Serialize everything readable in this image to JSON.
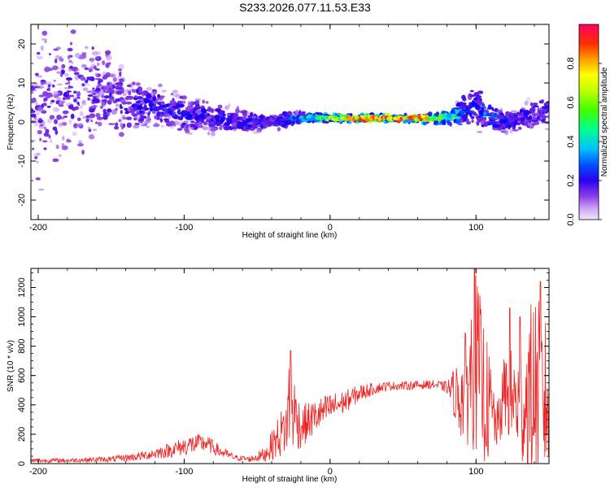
{
  "title": "S233.2026.077.11.53.E33",
  "colors": {
    "snr_line": "#ee2222",
    "colormap": [
      "#f0e8ff",
      "#b784f0",
      "#7b2be0",
      "#3a00e8",
      "#0000ff",
      "#0080ff",
      "#00e0ff",
      "#00ff80",
      "#80ff00",
      "#ffff00",
      "#ffa000",
      "#ff3000",
      "#ff0060"
    ]
  },
  "chart_data": [
    {
      "type": "heatmap",
      "title": "S233.2026.077.11.53.E33",
      "xlabel": "Height of straight line (km)",
      "ylabel": "Frequency (Hz)",
      "xlim": [
        -205,
        150
      ],
      "ylim": [
        -25,
        25
      ],
      "xticks": [
        -200,
        -100,
        0,
        100
      ],
      "yticks": [
        20,
        10,
        0,
        -10,
        -20
      ],
      "ytick_labels": [
        "20",
        "10",
        "0",
        "-10",
        "-20"
      ],
      "colorbar": {
        "label": "Normalized spectral amplitude",
        "range": [
          0.0,
          1.0
        ],
        "ticks": [
          0.0,
          0.2,
          0.4,
          0.6,
          0.8
        ],
        "tick_labels": [
          "0.0",
          "0.2",
          "0.4",
          "0.6",
          "0.8"
        ]
      },
      "ridge": {
        "description_points_height_km": [
          -200,
          -160,
          -140,
          -120,
          -100,
          -80,
          -60,
          -40,
          -20,
          0,
          20,
          40,
          60,
          80,
          100,
          110,
          120,
          130,
          140,
          150
        ],
        "center_freq_hz": [
          4,
          8,
          5,
          4,
          2,
          1,
          0,
          0,
          1,
          1,
          1,
          1,
          1,
          1,
          4,
          1,
          0,
          1,
          2,
          3
        ],
        "spread_hz": [
          20,
          14,
          9,
          6,
          5,
          4,
          3,
          2,
          1.5,
          1,
          1,
          1,
          1,
          2,
          6,
          4,
          3,
          3,
          4,
          5
        ],
        "peak_amplitude": [
          0.15,
          0.2,
          0.25,
          0.3,
          0.3,
          0.3,
          0.3,
          0.35,
          0.5,
          0.7,
          0.9,
          0.95,
          0.95,
          0.6,
          0.35,
          0.45,
          0.35,
          0.3,
          0.3,
          0.3
        ]
      }
    },
    {
      "type": "line",
      "title": "",
      "xlabel": "Height of straight line (km)",
      "ylabel": "SNR (10 * v/v)",
      "xlim": [
        -205,
        150
      ],
      "ylim": [
        0,
        1330
      ],
      "xticks": [
        -200,
        -100,
        0,
        100
      ],
      "yticks": [
        0,
        200,
        400,
        600,
        800,
        1000,
        1200
      ],
      "series": [
        {
          "x": [
            -205,
            -180,
            -150,
            -130,
            -110,
            -95,
            -85,
            -75,
            -65,
            -55,
            -45,
            -30,
            -28,
            -20,
            -10,
            0,
            10,
            20,
            30,
            40,
            50,
            60,
            70,
            80,
            90,
            100,
            105,
            110,
            115,
            120,
            130,
            140,
            150
          ],
          "mean": [
            20,
            22,
            30,
            50,
            90,
            130,
            140,
            80,
            40,
            30,
            60,
            250,
            420,
            250,
            320,
            380,
            420,
            480,
            510,
            530,
            530,
            535,
            540,
            520,
            450,
            700,
            500,
            350,
            250,
            500,
            380,
            500,
            420
          ],
          "amplitude": [
            15,
            15,
            20,
            30,
            50,
            70,
            60,
            40,
            20,
            20,
            50,
            200,
            350,
            150,
            120,
            100,
            80,
            60,
            40,
            30,
            30,
            30,
            30,
            40,
            300,
            620,
            500,
            350,
            150,
            300,
            380,
            700,
            500
          ],
          "spikes": [
            {
              "x": -27,
              "y": 770
            },
            {
              "x": 99,
              "y": 1330
            },
            {
              "x": 144,
              "y": 1240
            },
            {
              "x": 123,
              "y": 1060
            },
            {
              "x": 130,
              "y": 1000
            }
          ]
        }
      ]
    }
  ]
}
